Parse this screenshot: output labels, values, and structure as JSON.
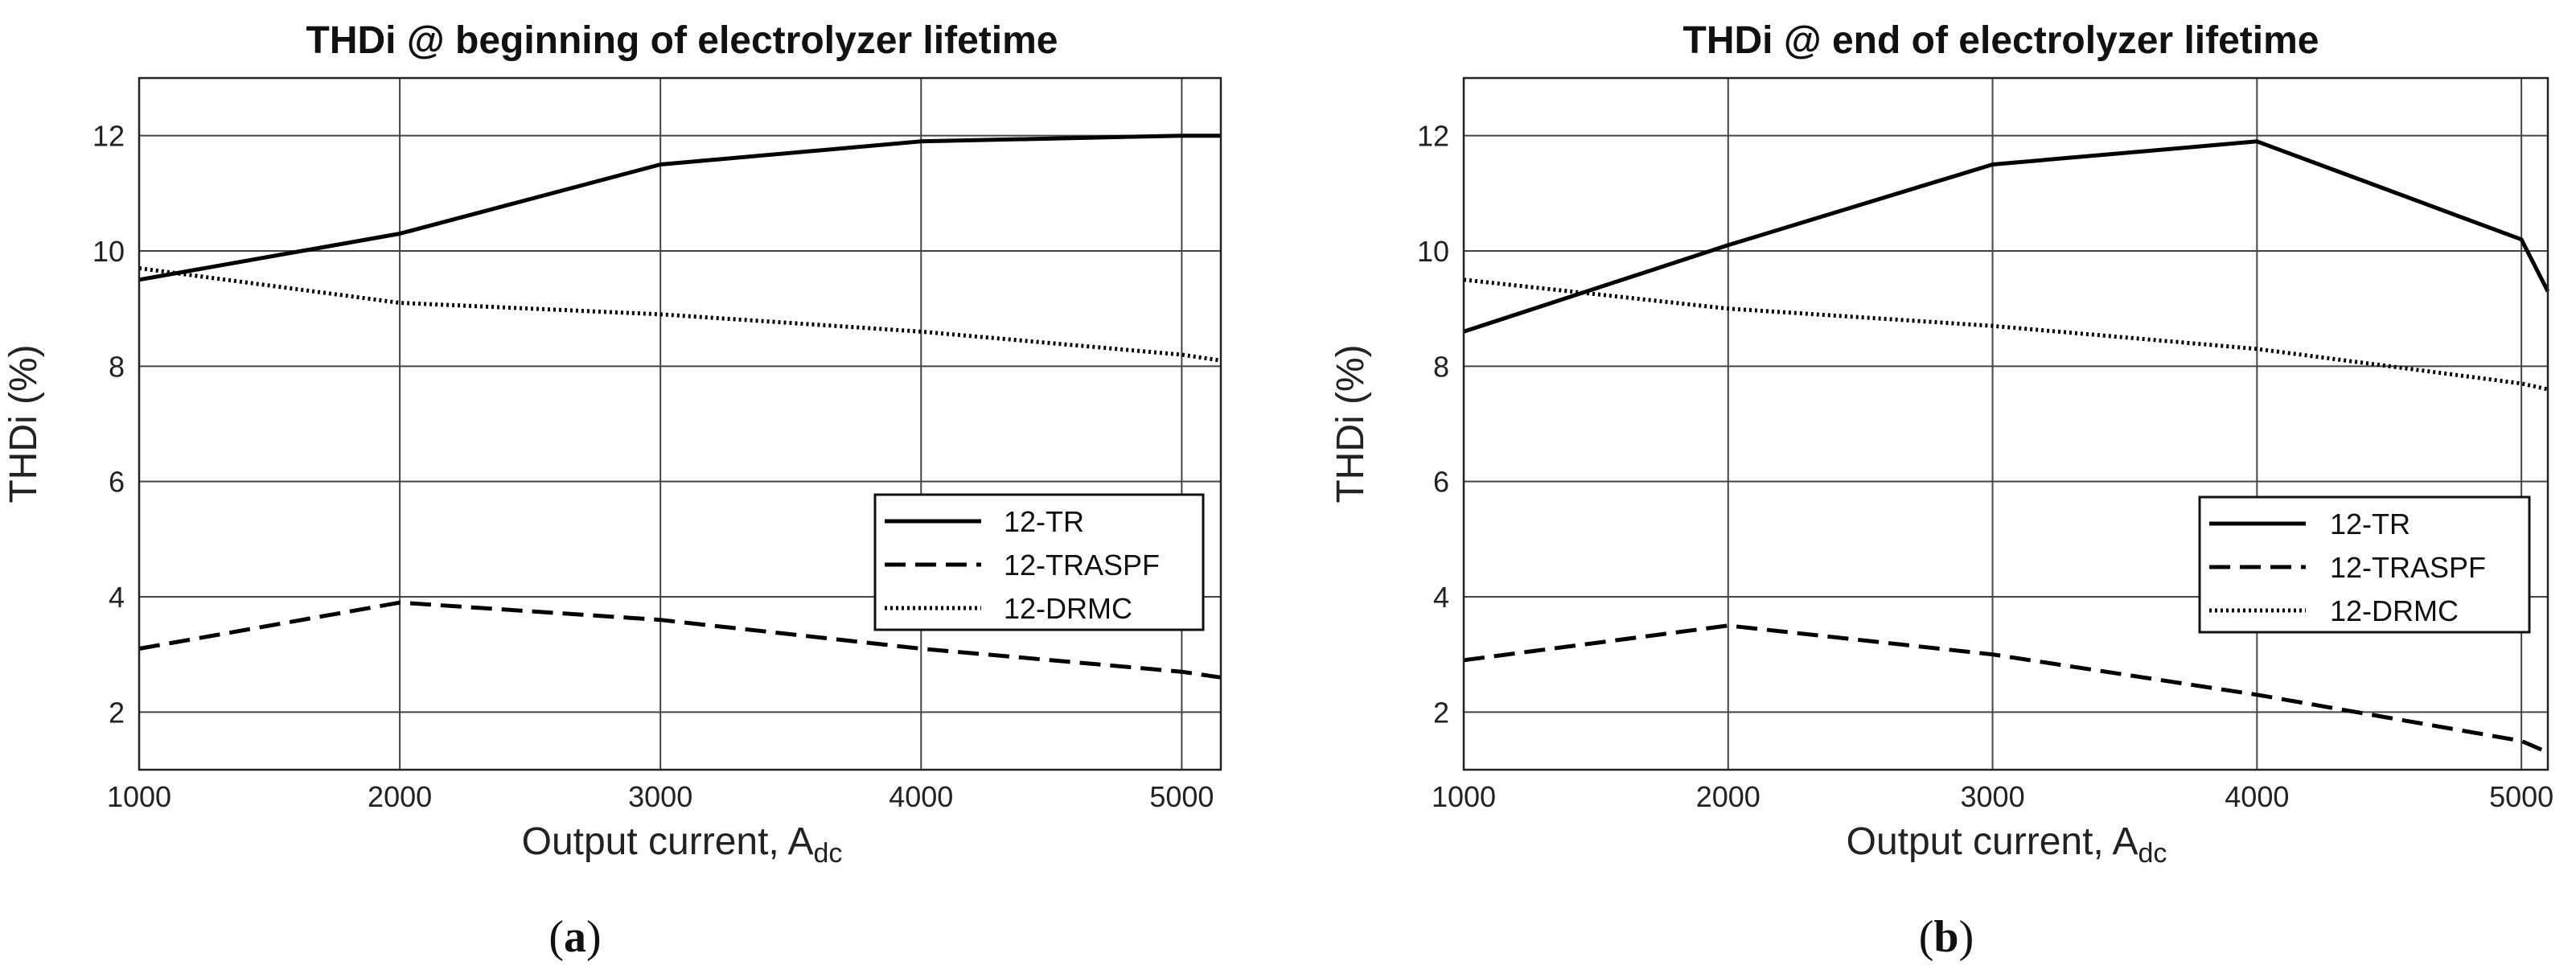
{
  "chart_data": [
    {
      "type": "line",
      "title": "THDi @ beginning of electrolyzer lifetime",
      "xlabel": "Output current, A",
      "xlabel_subscript": "dc",
      "ylabel": "THDi (%)",
      "xlim": [
        1000,
        5150
      ],
      "ylim": [
        1,
        13
      ],
      "xticks": [
        1000,
        2000,
        3000,
        4000,
        5000
      ],
      "yticks": [
        2,
        4,
        6,
        8,
        10,
        12
      ],
      "caption": "a",
      "legend_position": "lower-right",
      "series": [
        {
          "name": "12-TR",
          "style": "solid",
          "x": [
            1000,
            2000,
            3000,
            4000,
            5000,
            5150
          ],
          "y": [
            9.5,
            10.3,
            11.5,
            11.9,
            12.0,
            12.0
          ]
        },
        {
          "name": "12-TRASPF",
          "style": "dashed",
          "x": [
            1000,
            2000,
            3000,
            4000,
            5000,
            5150
          ],
          "y": [
            3.1,
            3.9,
            3.6,
            3.1,
            2.7,
            2.6
          ]
        },
        {
          "name": "12-DRMC",
          "style": "dotted",
          "x": [
            1000,
            2000,
            3000,
            4000,
            5000,
            5150
          ],
          "y": [
            9.7,
            9.1,
            8.9,
            8.6,
            8.2,
            8.1
          ]
        }
      ]
    },
    {
      "type": "line",
      "title": "THDi @ end of electrolyzer lifetime",
      "xlabel": "Output current, A",
      "xlabel_subscript": "dc",
      "ylabel": "THDi (%)",
      "xlim": [
        1000,
        5100
      ],
      "ylim": [
        1,
        13
      ],
      "xticks": [
        1000,
        2000,
        3000,
        4000,
        5000
      ],
      "yticks": [
        2,
        4,
        6,
        8,
        10,
        12
      ],
      "caption": "b",
      "legend_position": "lower-right",
      "series": [
        {
          "name": "12-TR",
          "style": "solid",
          "x": [
            1000,
            2000,
            3000,
            4000,
            5000,
            5100
          ],
          "y": [
            8.6,
            10.1,
            11.5,
            11.9,
            10.2,
            9.3
          ]
        },
        {
          "name": "12-TRASPF",
          "style": "dashed",
          "x": [
            1000,
            2000,
            3000,
            4000,
            5000,
            5100
          ],
          "y": [
            2.9,
            3.5,
            3.0,
            2.3,
            1.5,
            1.3
          ]
        },
        {
          "name": "12-DRMC",
          "style": "dotted",
          "x": [
            1000,
            2000,
            3000,
            4000,
            5000,
            5100
          ],
          "y": [
            9.5,
            9.0,
            8.7,
            8.3,
            7.7,
            7.6
          ]
        }
      ]
    }
  ]
}
